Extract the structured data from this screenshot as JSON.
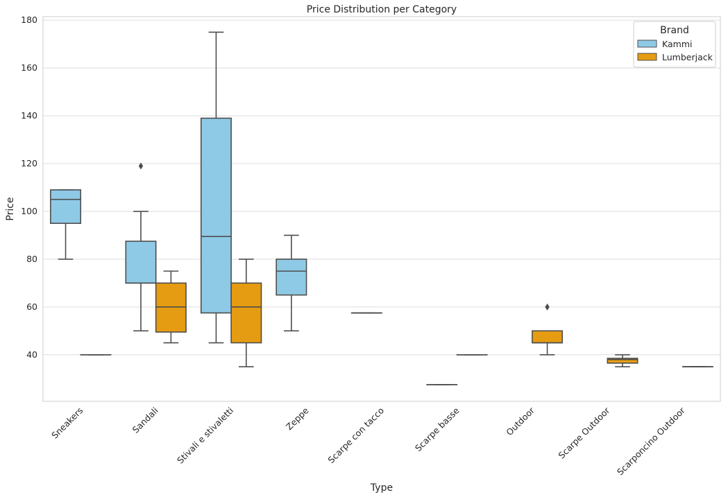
{
  "chart_data": {
    "type": "box",
    "title": "Price Distribution per Category",
    "xlabel": "Type",
    "ylabel": "Price",
    "ylim": [
      20.5,
      181.5
    ],
    "yticks": [
      40,
      60,
      80,
      100,
      120,
      140,
      160,
      180
    ],
    "grid": "horizontal",
    "categories": [
      "Sneakers",
      "Sandali",
      "Stivali e stivaletti",
      "Zeppe",
      "Scarpe con tacco",
      "Scarpe basse",
      "Outdoor",
      "Scarpe Outdoor",
      "Scarponcino Outdoor"
    ],
    "legend": {
      "title": "Brand",
      "placement": "top-right",
      "entries": [
        "Kammi",
        "Lumberjack"
      ]
    },
    "series": [
      {
        "name": "Kammi",
        "color": "#8ecae6",
        "boxes": [
          {
            "category": "Sneakers",
            "whislo": 80,
            "q1": 95,
            "med": 105,
            "q3": 109,
            "whishi": 109,
            "fliers": []
          },
          {
            "category": "Sandali",
            "whislo": 50,
            "q1": 70,
            "med": 70,
            "q3": 87.5,
            "whishi": 100,
            "fliers": [
              119
            ]
          },
          {
            "category": "Stivali e stivaletti",
            "whislo": 45,
            "q1": 57.5,
            "med": 89.5,
            "q3": 139,
            "whishi": 175,
            "fliers": []
          },
          {
            "category": "Zeppe",
            "whislo": 50,
            "q1": 65,
            "med": 75,
            "q3": 80,
            "whishi": 90,
            "fliers": []
          },
          {
            "category": "Scarpe con tacco",
            "whislo": 57.5,
            "q1": 57.5,
            "med": 57.5,
            "q3": 57.5,
            "whishi": 57.5,
            "fliers": []
          },
          {
            "category": "Scarpe basse",
            "whislo": 27.5,
            "q1": 27.5,
            "med": 27.5,
            "q3": 27.5,
            "whishi": 27.5,
            "fliers": []
          }
        ]
      },
      {
        "name": "Lumberjack",
        "color": "#e69c12",
        "boxes": [
          {
            "category": "Sneakers",
            "whislo": 40,
            "q1": 40,
            "med": 40,
            "q3": 40,
            "whishi": 40,
            "fliers": []
          },
          {
            "category": "Sandali",
            "whislo": 45,
            "q1": 49.5,
            "med": 60,
            "q3": 70,
            "whishi": 75,
            "fliers": []
          },
          {
            "category": "Stivali e stivaletti",
            "whislo": 35,
            "q1": 45,
            "med": 60,
            "q3": 70,
            "whishi": 80,
            "fliers": []
          },
          {
            "category": "Scarpe basse",
            "whislo": 40,
            "q1": 40,
            "med": 40,
            "q3": 40,
            "whishi": 40,
            "fliers": []
          },
          {
            "category": "Outdoor",
            "whislo": 40,
            "q1": 45,
            "med": 45,
            "q3": 50,
            "whishi": 50,
            "fliers": [
              60
            ]
          },
          {
            "category": "Scarpe Outdoor",
            "whislo": 35,
            "q1": 36.5,
            "med": 38,
            "q3": 38.5,
            "whishi": 40,
            "fliers": []
          },
          {
            "category": "Scarponcino Outdoor",
            "whislo": 35,
            "q1": 35,
            "med": 35,
            "q3": 35,
            "whishi": 35,
            "fliers": []
          }
        ]
      }
    ]
  }
}
